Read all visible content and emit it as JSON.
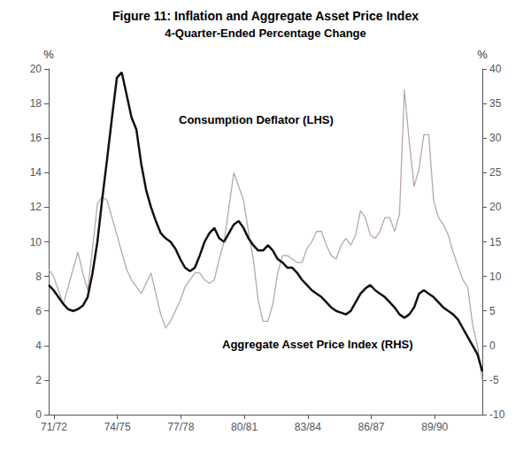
{
  "chart_data": {
    "type": "line",
    "title": "Figure 11: Inflation and Aggregate Asset Price Index",
    "subtitle": "4-Quarter-Ended Percentage Change",
    "ylabel": "%",
    "y2label": "%",
    "x": [
      1971.25,
      1971.4803,
      1971.7107,
      1971.941,
      1972.1713,
      1972.4017,
      1972.632,
      1972.8624,
      1973.0927,
      1973.323,
      1973.5534,
      1973.7837,
      1974.014,
      1974.2444,
      1974.4747,
      1974.7051,
      1974.9354,
      1975.1657,
      1975.3961,
      1975.6264,
      1975.8567,
      1976.0871,
      1976.3174,
      1976.5478,
      1976.7781,
      1977.0084,
      1977.2388,
      1977.4691,
      1977.6994,
      1977.9298,
      1978.1601,
      1978.3904,
      1978.6208,
      1978.8511,
      1979.0815,
      1979.3118,
      1979.5421,
      1979.7725,
      1980.0028,
      1980.2331,
      1980.4635,
      1980.6938,
      1980.9242,
      1981.1545,
      1981.3848,
      1981.6152,
      1981.8455,
      1982.0758,
      1982.3062,
      1982.5365,
      1982.7669,
      1982.9972,
      1983.2275,
      1983.4579,
      1983.6882,
      1983.9185,
      1984.1489,
      1984.3792,
      1984.6096,
      1984.8399,
      1985.0702,
      1985.3006,
      1985.5309,
      1985.7612,
      1985.9916,
      1986.2219,
      1986.4522,
      1986.6826,
      1986.9129,
      1987.1433,
      1987.3736,
      1987.6039,
      1987.8343,
      1988.0646,
      1988.2949,
      1988.5253,
      1988.7556,
      1988.986,
      1989.2163,
      1989.4466,
      1989.677,
      1989.9073,
      1990.1376,
      1990.368,
      1990.5983,
      1990.8287,
      1991.059,
      1991.2893,
      1991.5197,
      1991.75
    ],
    "xlim": [
      1971.25,
      1991.75
    ],
    "xticks": [
      {
        "value": 1971.5,
        "label": "71/72"
      },
      {
        "value": 1974.5,
        "label": "74/75"
      },
      {
        "value": 1977.5,
        "label": "77/78"
      },
      {
        "value": 1980.5,
        "label": "80/81"
      },
      {
        "value": 1983.5,
        "label": "83/84"
      },
      {
        "value": 1986.5,
        "label": "86/87"
      },
      {
        "value": 1989.5,
        "label": "89/90"
      }
    ],
    "ylim": [
      0,
      20
    ],
    "yticks": [
      0,
      2,
      4,
      6,
      8,
      10,
      12,
      14,
      16,
      18,
      20
    ],
    "y2lim": [
      -10,
      40
    ],
    "y2ticks": [
      -10,
      -5,
      0,
      5,
      10,
      15,
      20,
      25,
      30,
      35,
      40
    ],
    "grid": false,
    "series": [
      {
        "name": "Consumption Deflator (LHS)",
        "color": "#111111",
        "values": [
          7.5,
          7.2,
          6.8,
          6.4,
          6.1,
          6.0,
          6.1,
          6.3,
          6.8,
          8.2,
          10.0,
          12.5,
          14.8,
          17.2,
          19.5,
          19.8,
          18.5,
          17.2,
          16.5,
          14.5,
          13.0,
          12.0,
          11.2,
          10.5,
          10.2,
          10.0,
          9.6,
          9.0,
          8.5,
          8.3,
          8.5,
          9.2,
          10.0,
          10.5,
          10.8,
          10.2,
          10.0,
          10.5,
          11.0,
          11.2,
          10.8,
          10.2,
          9.8,
          9.5,
          9.5,
          9.8,
          9.5,
          9.0,
          8.8,
          8.5,
          8.5,
          8.2,
          7.8,
          7.5,
          7.2,
          7.0,
          6.8,
          6.5,
          6.2,
          6.0,
          5.9,
          5.8,
          6.0,
          6.5,
          7.0,
          7.3,
          7.5,
          7.2,
          7.0,
          6.8,
          6.5,
          6.2,
          5.8,
          5.6,
          5.8,
          6.2,
          7.0,
          7.2,
          7.0,
          6.8,
          6.5,
          6.2,
          6.0,
          5.8,
          5.5,
          5.0,
          4.5,
          4.0,
          3.5,
          2.5
        ]
      },
      {
        "name": "Aggregate Asset Price Index (RHS)",
        "color": "#b8a8a8",
        "axis": "y2",
        "values": [
          11.0,
          10.0,
          8.0,
          6.0,
          8.5,
          11.0,
          13.5,
          10.5,
          8.0,
          14.0,
          20.5,
          21.5,
          21.0,
          18.5,
          16.0,
          13.5,
          11.0,
          9.5,
          8.5,
          7.5,
          9.0,
          10.5,
          7.5,
          4.5,
          2.5,
          3.5,
          5.0,
          6.5,
          8.5,
          9.5,
          10.5,
          10.5,
          9.5,
          9.0,
          9.5,
          12.5,
          15.0,
          20.0,
          25.0,
          23.0,
          21.0,
          16.5,
          12.5,
          6.5,
          3.5,
          3.5,
          6.0,
          10.5,
          13.0,
          13.0,
          12.5,
          12.0,
          12.0,
          14.0,
          15.0,
          16.5,
          16.5,
          14.5,
          13.0,
          12.5,
          14.5,
          15.5,
          14.5,
          16.0,
          19.5,
          18.5,
          16.0,
          15.5,
          16.5,
          18.5,
          18.5,
          16.5,
          19.0,
          37.0,
          29.5,
          23.0,
          25.5,
          30.5,
          30.5,
          21.0,
          18.5,
          17.5,
          16.0,
          13.5,
          11.5,
          9.5,
          8.5,
          3.0,
          0.0,
          -5.0
        ]
      }
    ]
  }
}
